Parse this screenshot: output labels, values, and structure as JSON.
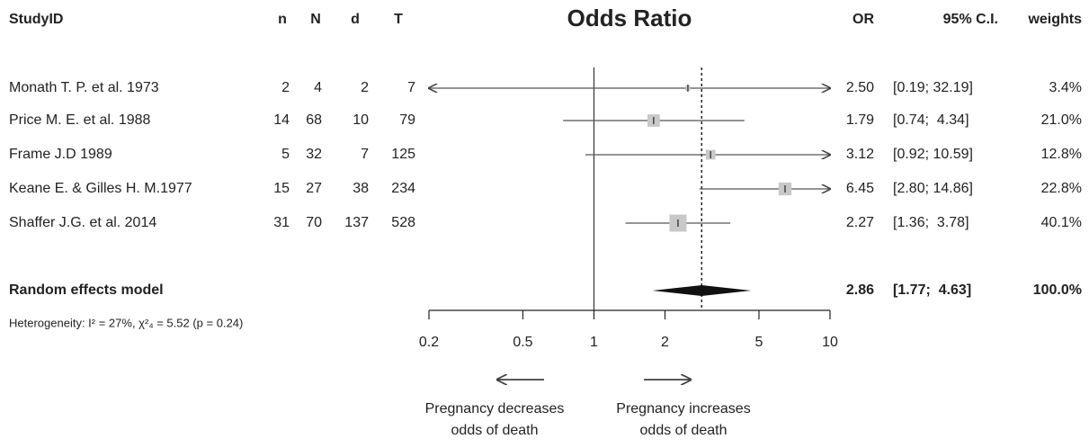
{
  "chart_data": {
    "type": "forest",
    "title": "Odds Ratio",
    "columns": {
      "study": "StudyID",
      "n": "n",
      "N": "N",
      "d": "d",
      "T": "T",
      "or": "OR",
      "ci": "95% C.I.",
      "weights": "weights"
    },
    "studies": [
      {
        "name": "Monath T. P. et al. 1973",
        "n": 2,
        "N": 4,
        "d": 2,
        "T": 7,
        "or": 2.5,
        "or_label": "2.50",
        "lower": 0.19,
        "upper": 32.19,
        "ci_label": "[0.19; 32.19]",
        "weight": 3.4,
        "weight_label": "3.4%"
      },
      {
        "name": "Price M. E. et al. 1988",
        "n": 14,
        "N": 68,
        "d": 10,
        "T": 79,
        "or": 1.79,
        "or_label": "1.79",
        "lower": 0.74,
        "upper": 4.34,
        "ci_label": "[0.74;  4.34]",
        "weight": 21,
        "weight_label": "21.0%"
      },
      {
        "name": "Frame J.D 1989",
        "n": 5,
        "N": 32,
        "d": 7,
        "T": 125,
        "or": 3.12,
        "or_label": "3.12",
        "lower": 0.92,
        "upper": 10.59,
        "ci_label": "[0.92; 10.59]",
        "weight": 12.8,
        "weight_label": "12.8%"
      },
      {
        "name": "Keane E. & Gilles H. M.1977",
        "n": 15,
        "N": 27,
        "d": 38,
        "T": 234,
        "or": 6.45,
        "or_label": "6.45",
        "lower": 2.8,
        "upper": 14.86,
        "ci_label": "[2.80; 14.86]",
        "weight": 22.8,
        "weight_label": "22.8%"
      },
      {
        "name": "Shaffer J.G. et al. 2014",
        "n": 31,
        "N": 70,
        "d": 137,
        "T": 528,
        "or": 2.27,
        "or_label": "2.27",
        "lower": 1.36,
        "upper": 3.78,
        "ci_label": "[1.36;  3.78]",
        "weight": 40.1,
        "weight_label": "40.1%"
      }
    ],
    "summary": {
      "name": "Random effects model",
      "or": 2.86,
      "or_label": "2.86",
      "lower": 1.77,
      "upper": 4.63,
      "ci_label": "[1.77;  4.63]",
      "weight": 100,
      "weight_label": "100.0%"
    },
    "heterogeneity": "Heterogeneity: I² = 27%, χ²₄ = 5.52 (p = 0.24)",
    "xscale": "log",
    "xlim": [
      0.2,
      10
    ],
    "xticks": [
      0.2,
      0.5,
      1,
      2,
      5,
      10
    ],
    "reference_line": 1,
    "square_color": "#c8c8c8",
    "line_color": "#555555",
    "direction_labels": {
      "left": [
        "Pregnancy decreases",
        "odds of death"
      ],
      "right": [
        "Pregnancy increases",
        "odds of death"
      ]
    }
  }
}
